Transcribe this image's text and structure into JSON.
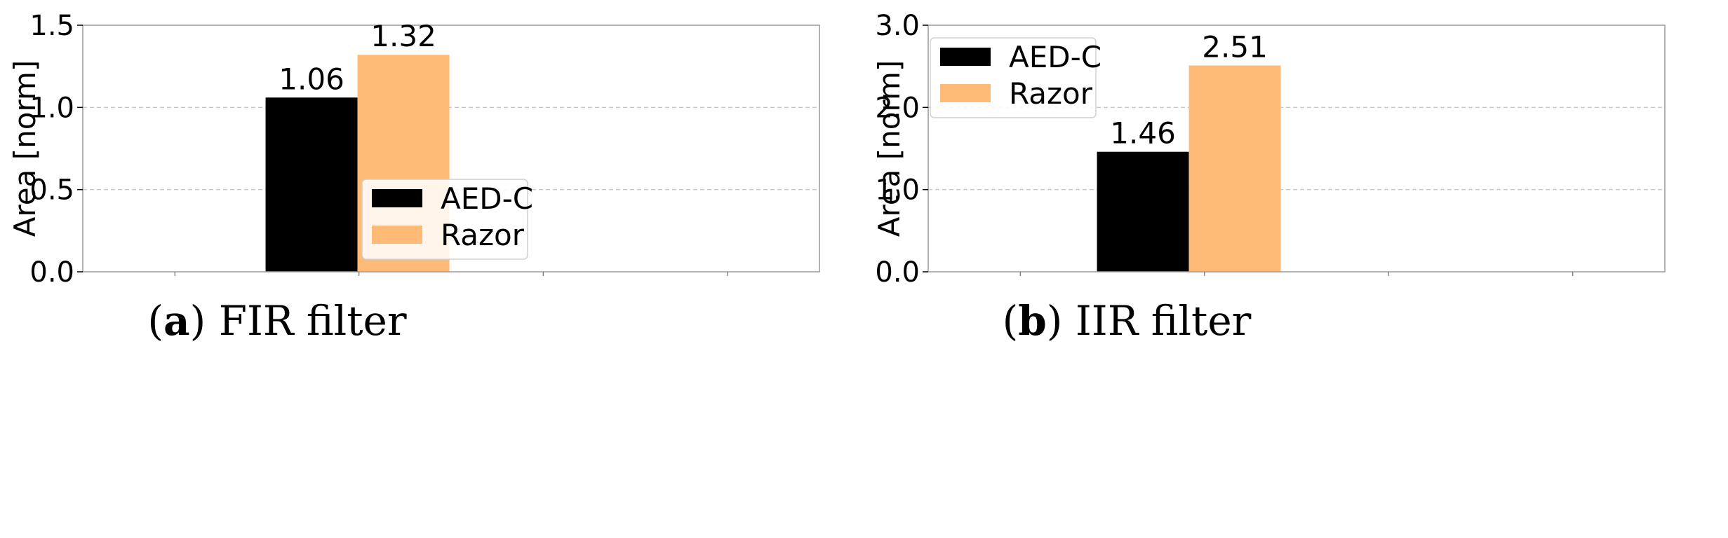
{
  "chart_data": [
    {
      "type": "bar",
      "caption_letter": "a",
      "caption_text": "FIR filter",
      "ylabel": "Area [norm]",
      "ylim": [
        0,
        1.5
      ],
      "yticks": [
        "0.0",
        "0.5",
        "1.0",
        "1.5"
      ],
      "ytick_values": [
        0,
        0.5,
        1.0,
        1.5
      ],
      "grid": "horizontal dashed",
      "legend_position": "lower-right",
      "series": [
        {
          "name": "AED-C",
          "color": "#000000",
          "value": 1.06,
          "label": "1.06"
        },
        {
          "name": "Razor",
          "color": "#fdbb77",
          "value": 1.32,
          "label": "1.32"
        }
      ]
    },
    {
      "type": "bar",
      "caption_letter": "b",
      "caption_text": "IIR filter",
      "ylabel": "Area [norm]",
      "ylim": [
        0,
        3.0
      ],
      "yticks": [
        "0.0",
        "1.0",
        "2.0",
        "3.0"
      ],
      "ytick_values": [
        0,
        1.0,
        2.0,
        3.0
      ],
      "grid": "horizontal dashed",
      "legend_position": "upper-left",
      "series": [
        {
          "name": "AED-C",
          "color": "#000000",
          "value": 1.46,
          "label": "1.46"
        },
        {
          "name": "Razor",
          "color": "#fdbb77",
          "value": 2.51,
          "label": "2.51"
        }
      ]
    }
  ]
}
